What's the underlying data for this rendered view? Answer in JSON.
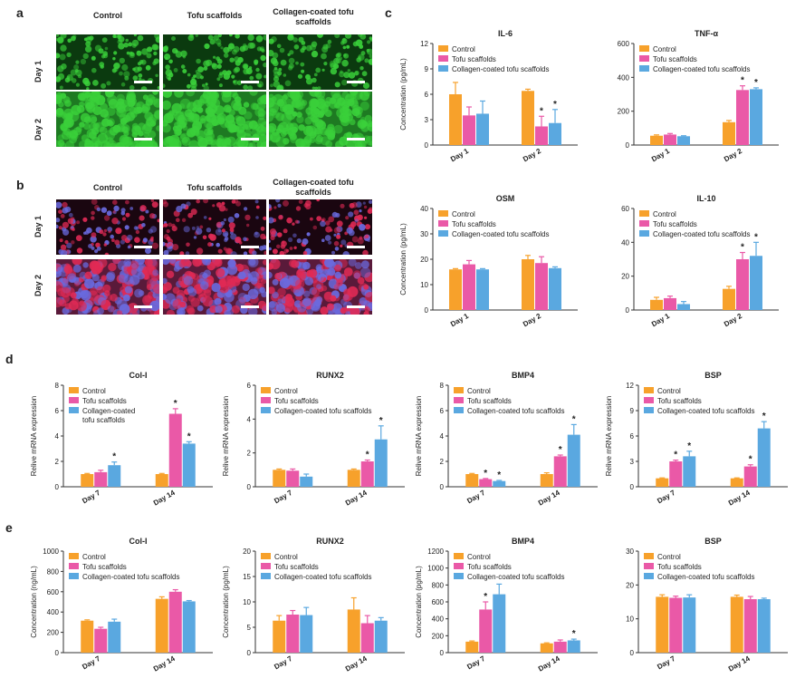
{
  "panels": {
    "a": {
      "letter": "a",
      "columns": [
        "Control",
        "Tofu scaffolds",
        "Collagen-coated tofu scaffolds"
      ],
      "rows": [
        "Day 1",
        "Day 2"
      ]
    },
    "b": {
      "letter": "b",
      "columns": [
        "Control",
        "Tofu scaffolds",
        "Collagen-coated tofu scaffolds"
      ],
      "rows": [
        "Day 1",
        "Day 2"
      ]
    },
    "c_letter": "c",
    "d_letter": "d",
    "e_letter": "e"
  },
  "colors": {
    "control": "#f7a12b",
    "tofu": "#ea59a7",
    "collagen": "#5aa8e0",
    "green_cells": "#3ad03a",
    "red_cells": "#e02a55",
    "blue_nuclei": "#6a6adf"
  },
  "chart_data": [
    {
      "id": "c-il6",
      "type": "bar",
      "title": "IL-6",
      "ylabel": "Concentration (pg/mL)",
      "categories": [
        "Day 1",
        "Day 2"
      ],
      "ylim": [
        0,
        12
      ],
      "yticks": [
        0,
        3,
        6,
        9,
        12
      ],
      "legend_position": "top-left",
      "legend": [
        "Control",
        "Tofu scaffolds",
        "Collagen-coated tofu scaffolds"
      ],
      "series": [
        {
          "name": "Control",
          "values": [
            6.0,
            6.4
          ],
          "errors": [
            1.4,
            0.2
          ],
          "stars": [
            false,
            false
          ]
        },
        {
          "name": "Tofu scaffolds",
          "values": [
            3.5,
            2.2
          ],
          "errors": [
            1.0,
            1.2
          ],
          "stars": [
            false,
            true
          ]
        },
        {
          "name": "Collagen-coated tofu scaffolds",
          "values": [
            3.7,
            2.6
          ],
          "errors": [
            1.5,
            1.6
          ],
          "stars": [
            false,
            true
          ]
        }
      ]
    },
    {
      "id": "c-tnfa",
      "type": "bar",
      "title": "TNF-α",
      "ylabel": "",
      "categories": [
        "Day 1",
        "Day 2"
      ],
      "ylim": [
        0,
        600
      ],
      "yticks": [
        0,
        200,
        400,
        600
      ],
      "legend_position": "top-left",
      "legend": [
        "Control",
        "Tofu scaffolds",
        "Collagen-coated tofu scaffolds"
      ],
      "series": [
        {
          "name": "Control",
          "values": [
            55,
            135
          ],
          "errors": [
            5,
            10
          ],
          "stars": [
            false,
            false
          ]
        },
        {
          "name": "Tofu scaffolds",
          "values": [
            62,
            325
          ],
          "errors": [
            6,
            25
          ],
          "stars": [
            false,
            true
          ]
        },
        {
          "name": "Collagen-coated tofu scaffolds",
          "values": [
            52,
            330
          ],
          "errors": [
            3,
            8
          ],
          "stars": [
            false,
            true
          ]
        }
      ]
    },
    {
      "id": "c-osm",
      "type": "bar",
      "title": "OSM",
      "ylabel": "Concentration (pg/mL)",
      "categories": [
        "Day 1",
        "Day 2"
      ],
      "ylim": [
        0,
        40
      ],
      "yticks": [
        0,
        10,
        20,
        30,
        40
      ],
      "legend_position": "top-left",
      "legend": [
        "Control",
        "Tofu scaffolds",
        "Collagen-coated tofu scaffolds"
      ],
      "series": [
        {
          "name": "Control",
          "values": [
            16,
            20
          ],
          "errors": [
            0.3,
            1.5
          ],
          "stars": [
            false,
            false
          ]
        },
        {
          "name": "Tofu scaffolds",
          "values": [
            18,
            18.5
          ],
          "errors": [
            1.5,
            2.5
          ],
          "stars": [
            false,
            false
          ]
        },
        {
          "name": "Collagen-coated tofu scaffolds",
          "values": [
            16,
            16.5
          ],
          "errors": [
            0.3,
            0.5
          ],
          "stars": [
            false,
            false
          ]
        }
      ]
    },
    {
      "id": "c-il10",
      "type": "bar",
      "title": "IL-10",
      "ylabel": "",
      "categories": [
        "Day 1",
        "Day 2"
      ],
      "ylim": [
        0,
        60
      ],
      "yticks": [
        0,
        20,
        40,
        60
      ],
      "legend_position": "top-left",
      "legend": [
        "Control",
        "Tofu scaffolds",
        "Collagen-coated tofu scaffolds"
      ],
      "series": [
        {
          "name": "Control",
          "values": [
            6,
            12.5
          ],
          "errors": [
            1.5,
            1.5
          ],
          "stars": [
            false,
            false
          ]
        },
        {
          "name": "Tofu scaffolds",
          "values": [
            7,
            30
          ],
          "errors": [
            1.2,
            4
          ],
          "stars": [
            false,
            true
          ]
        },
        {
          "name": "Collagen-coated tofu scaffolds",
          "values": [
            3.5,
            32
          ],
          "errors": [
            1.5,
            8
          ],
          "stars": [
            false,
            true
          ]
        }
      ]
    },
    {
      "id": "d-col1",
      "type": "bar",
      "title": "Col-I",
      "ylabel": "Relive mRNA expression",
      "categories": [
        "Day 7",
        "Day 14"
      ],
      "ylim": [
        0,
        8
      ],
      "yticks": [
        0,
        2,
        4,
        6,
        8
      ],
      "legend_position": "top-left",
      "legend": [
        "Control",
        "Tofu scaffolds",
        "Collagen-coated tofu scaffolds"
      ],
      "series": [
        {
          "name": "Control",
          "values": [
            1.0,
            1.0
          ],
          "errors": [
            0.05,
            0.05
          ],
          "stars": [
            false,
            false
          ]
        },
        {
          "name": "Tofu scaffolds",
          "values": [
            1.15,
            5.75
          ],
          "errors": [
            0.15,
            0.4
          ],
          "stars": [
            false,
            true
          ]
        },
        {
          "name": "Collagen-coated tofu scaffolds",
          "values": [
            1.7,
            3.4
          ],
          "errors": [
            0.25,
            0.15
          ],
          "stars": [
            true,
            true
          ]
        }
      ]
    },
    {
      "id": "d-runx2",
      "type": "bar",
      "title": "RUNX2",
      "ylabel": "Relive mRNA expression",
      "categories": [
        "Day 7",
        "Day 14"
      ],
      "ylim": [
        0,
        6
      ],
      "yticks": [
        0,
        2,
        4,
        6
      ],
      "legend_position": "top-left",
      "legend": [
        "Control",
        "Tofu scaffolds",
        "Collagen-coated tofu scaffolds"
      ],
      "series": [
        {
          "name": "Control",
          "values": [
            1.0,
            1.0
          ],
          "errors": [
            0.05,
            0.05
          ],
          "stars": [
            false,
            false
          ]
        },
        {
          "name": "Tofu scaffolds",
          "values": [
            0.95,
            1.5
          ],
          "errors": [
            0.1,
            0.08
          ],
          "stars": [
            false,
            true
          ]
        },
        {
          "name": "Collagen-coated tofu scaffolds",
          "values": [
            0.6,
            2.8
          ],
          "errors": [
            0.15,
            0.8
          ],
          "stars": [
            false,
            true
          ]
        }
      ]
    },
    {
      "id": "d-bmp4",
      "type": "bar",
      "title": "BMP4",
      "ylabel": "Relive mRNA expression",
      "categories": [
        "Day 7",
        "Day 14"
      ],
      "ylim": [
        0,
        8
      ],
      "yticks": [
        0,
        2,
        4,
        6,
        8
      ],
      "legend_position": "top-left",
      "legend": [
        "Control",
        "Tofu scaffolds",
        "Collagen-coated tofu scaffolds"
      ],
      "series": [
        {
          "name": "Control",
          "values": [
            1.0,
            1.0
          ],
          "errors": [
            0.05,
            0.1
          ],
          "stars": [
            false,
            false
          ]
        },
        {
          "name": "Tofu scaffolds",
          "values": [
            0.6,
            2.4
          ],
          "errors": [
            0.05,
            0.1
          ],
          "stars": [
            true,
            true
          ]
        },
        {
          "name": "Collagen-coated tofu scaffolds",
          "values": [
            0.45,
            4.1
          ],
          "errors": [
            0.05,
            0.8
          ],
          "stars": [
            true,
            true
          ]
        }
      ]
    },
    {
      "id": "d-bsp",
      "type": "bar",
      "title": "BSP",
      "ylabel": "Relive mRNA expression",
      "categories": [
        "Day 7",
        "Day 14"
      ],
      "ylim": [
        0,
        12
      ],
      "yticks": [
        0,
        3,
        6,
        9,
        12
      ],
      "legend_position": "top-left",
      "legend": [
        "Control",
        "Tofu scaffolds",
        "Collagen-coated tofu scaffolds"
      ],
      "series": [
        {
          "name": "Control",
          "values": [
            1.0,
            1.0
          ],
          "errors": [
            0.05,
            0.05
          ],
          "stars": [
            false,
            false
          ]
        },
        {
          "name": "Tofu scaffolds",
          "values": [
            3.0,
            2.4
          ],
          "errors": [
            0.15,
            0.2
          ],
          "stars": [
            true,
            true
          ]
        },
        {
          "name": "Collagen-coated tofu scaffolds",
          "values": [
            3.6,
            6.9
          ],
          "errors": [
            0.6,
            0.8
          ],
          "stars": [
            true,
            true
          ]
        }
      ]
    },
    {
      "id": "e-col1",
      "type": "bar",
      "title": "Col-I",
      "ylabel": "Concentration (ng/mL)",
      "categories": [
        "Day 7",
        "Day 14"
      ],
      "ylim": [
        0,
        1000
      ],
      "yticks": [
        0,
        200,
        400,
        600,
        800,
        1000
      ],
      "legend_position": "top-left",
      "legend": [
        "Control",
        "Tofu scaffolds",
        "Collagen-coated tofu scaffolds"
      ],
      "series": [
        {
          "name": "Control",
          "values": [
            315,
            530
          ],
          "errors": [
            8,
            20
          ],
          "stars": [
            false,
            false
          ]
        },
        {
          "name": "Tofu scaffolds",
          "values": [
            235,
            600
          ],
          "errors": [
            15,
            20
          ],
          "stars": [
            false,
            false
          ]
        },
        {
          "name": "Collagen-coated tofu scaffolds",
          "values": [
            305,
            505
          ],
          "errors": [
            25,
            8
          ],
          "stars": [
            false,
            false
          ]
        }
      ]
    },
    {
      "id": "e-runx2",
      "type": "bar",
      "title": "RUNX2",
      "ylabel": "Concentration (pg/mL)",
      "categories": [
        "Day 7",
        "Day 14"
      ],
      "ylim": [
        0,
        20
      ],
      "yticks": [
        0,
        5,
        10,
        15,
        20
      ],
      "legend_position": "top-left",
      "legend": [
        "Control",
        "Tofu scaffolds",
        "Collagen-coated tofu scaffolds"
      ],
      "series": [
        {
          "name": "Control",
          "values": [
            6.3,
            8.5
          ],
          "errors": [
            1.0,
            2.3
          ],
          "stars": [
            false,
            false
          ]
        },
        {
          "name": "Tofu scaffolds",
          "values": [
            7.5,
            5.8
          ],
          "errors": [
            0.8,
            1.5
          ],
          "stars": [
            false,
            false
          ]
        },
        {
          "name": "Collagen-coated tofu scaffolds",
          "values": [
            7.4,
            6.3
          ],
          "errors": [
            1.5,
            0.6
          ],
          "stars": [
            false,
            false
          ]
        }
      ]
    },
    {
      "id": "e-bmp4",
      "type": "bar",
      "title": "BMP4",
      "ylabel": "Concentration (pg/mL)",
      "categories": [
        "Day 7",
        "Day 14"
      ],
      "ylim": [
        0,
        1200
      ],
      "yticks": [
        0,
        200,
        400,
        600,
        800,
        1000,
        1200
      ],
      "legend_position": "top-left",
      "legend": [
        "Control",
        "Tofu scaffolds",
        "Collagen-coated tofu scaffolds"
      ],
      "series": [
        {
          "name": "Control",
          "values": [
            130,
            110
          ],
          "errors": [
            8,
            6
          ],
          "stars": [
            false,
            false
          ]
        },
        {
          "name": "Tofu scaffolds",
          "values": [
            510,
            130
          ],
          "errors": [
            90,
            20
          ],
          "stars": [
            true,
            false
          ]
        },
        {
          "name": "Collagen-coated tofu scaffolds",
          "values": [
            690,
            145
          ],
          "errors": [
            120,
            15
          ],
          "stars": [
            false,
            true
          ]
        }
      ]
    },
    {
      "id": "e-bsp",
      "type": "bar",
      "title": "BSP",
      "ylabel": "",
      "categories": [
        "Day 7",
        "Day 14"
      ],
      "ylim": [
        0,
        30
      ],
      "yticks": [
        0,
        10,
        20,
        30
      ],
      "legend_position": "top-left",
      "legend": [
        "Control",
        "Tofu scaffolds",
        "Collagen-coated tofu scaffolds"
      ],
      "series": [
        {
          "name": "Control",
          "values": [
            16.5,
            16.5
          ],
          "errors": [
            0.6,
            0.5
          ],
          "stars": [
            false,
            false
          ]
        },
        {
          "name": "Tofu scaffolds",
          "values": [
            16.2,
            15.8
          ],
          "errors": [
            0.5,
            0.8
          ],
          "stars": [
            false,
            false
          ]
        },
        {
          "name": "Collagen-coated tofu scaffolds",
          "values": [
            16.3,
            15.8
          ],
          "errors": [
            0.8,
            0.3
          ],
          "stars": [
            false,
            false
          ]
        }
      ]
    }
  ]
}
